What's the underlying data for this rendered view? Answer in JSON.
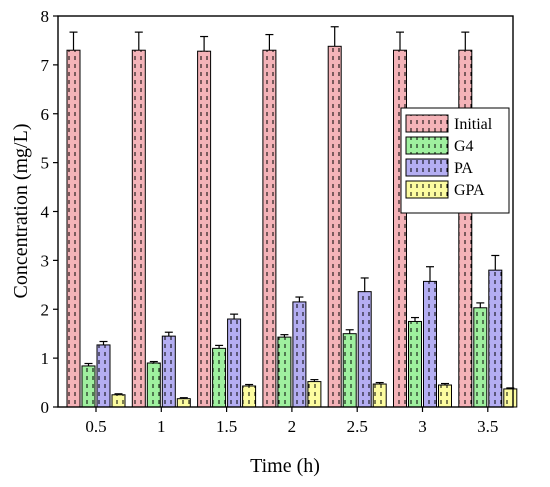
{
  "chart_data": {
    "type": "bar",
    "xlabel": "Time (h)",
    "ylabel": "Concentration (mg/L)",
    "ylim": [
      0,
      8
    ],
    "yticks": [
      "0",
      "1",
      "2",
      "3",
      "4",
      "5",
      "6",
      "7",
      "8"
    ],
    "categories": [
      "0.5",
      "1",
      "1.5",
      "2",
      "2.5",
      "3",
      "3.5"
    ],
    "series": [
      {
        "name": "Initial",
        "color": "#f4b3b8",
        "values": [
          7.3,
          7.3,
          7.28,
          7.3,
          7.38,
          7.3,
          7.3
        ],
        "errors": [
          0.37,
          0.37,
          0.3,
          0.32,
          0.4,
          0.37,
          0.37
        ]
      },
      {
        "name": "G4",
        "color": "#9ff09f",
        "values": [
          0.84,
          0.9,
          1.2,
          1.43,
          1.5,
          1.75,
          2.03
        ],
        "errors": [
          0.05,
          0.03,
          0.06,
          0.05,
          0.08,
          0.08,
          0.1
        ]
      },
      {
        "name": "PA",
        "color": "#b4aef2",
        "values": [
          1.27,
          1.45,
          1.8,
          2.15,
          2.36,
          2.57,
          2.8
        ],
        "errors": [
          0.07,
          0.08,
          0.1,
          0.1,
          0.28,
          0.3,
          0.3
        ]
      },
      {
        "name": "GPA",
        "color": "#fcfca0",
        "values": [
          0.25,
          0.17,
          0.43,
          0.52,
          0.47,
          0.45,
          0.37
        ],
        "errors": [
          0.02,
          0.02,
          0.03,
          0.04,
          0.03,
          0.03,
          0.02
        ]
      }
    ],
    "legend_position": "right-middle",
    "grid": false
  }
}
